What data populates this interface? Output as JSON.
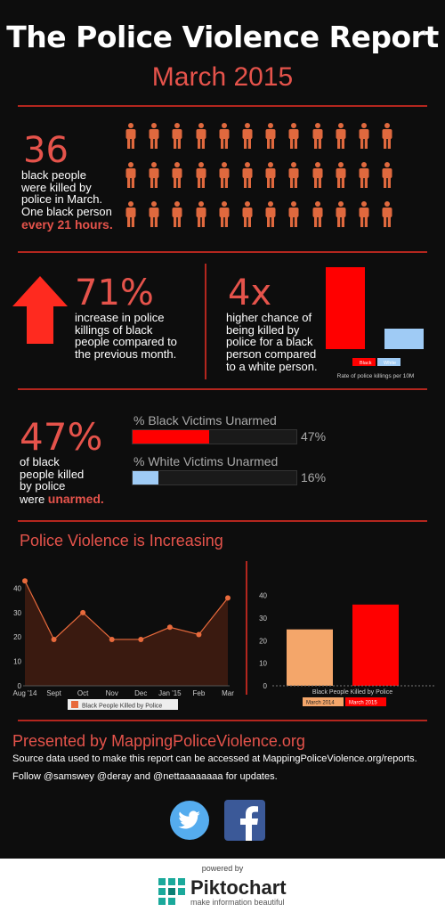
{
  "header": {
    "title": "The Police Violence Report",
    "subtitle": "March 2015"
  },
  "section1": {
    "number": "36",
    "text_lines": [
      "black people",
      "were killed by",
      "police in March.",
      "One black person"
    ],
    "highlight": "every 21 hours.",
    "icon_count": 36,
    "icon_color": "#e0693e"
  },
  "section2": {
    "left": {
      "number": "71%",
      "text_lines": [
        "increase in police",
        "killings of black",
        "people compared to",
        "the previous month."
      ]
    },
    "right": {
      "number": "4x",
      "text_lines": [
        "higher chance of",
        "being killed by",
        "police for a black",
        "person compared",
        "to a white person."
      ]
    }
  },
  "chart_data": [
    {
      "type": "bar",
      "categories": [
        "Black",
        "White"
      ],
      "values": [
        4,
        1
      ],
      "colors": [
        "#ff0000",
        "#9fcbf5"
      ],
      "xlabel": "Rate of police killings per 10M",
      "legend": [
        "Black",
        "White"
      ],
      "legend_placement": "bottom"
    },
    {
      "type": "bar",
      "orientation": "horizontal",
      "series": [
        {
          "name": "% Black Victims Unarmed",
          "value": 47,
          "label": "47%",
          "color": "#ff0000"
        },
        {
          "name": "% White Victims Unarmed",
          "value": 16,
          "label": "16%",
          "color": "#9fcbf5"
        }
      ],
      "xlim": [
        0,
        100
      ]
    },
    {
      "type": "area",
      "categories": [
        "Aug '14",
        "Sept",
        "Oct",
        "Nov",
        "Dec",
        "Jan '15",
        "Feb",
        "Mar"
      ],
      "series": [
        {
          "name": "Black People Killed by Police",
          "values": [
            43,
            19,
            30,
            19,
            19,
            24,
            21,
            36
          ],
          "color": "#e86a3c"
        }
      ],
      "yticks": [
        0,
        10,
        20,
        30,
        40
      ],
      "ylim": [
        0,
        46
      ],
      "legend_placement": "bottom"
    },
    {
      "type": "bar",
      "categories": [
        "March 2014",
        "March 2015"
      ],
      "values": [
        25,
        36
      ],
      "colors": [
        "#f4a66a",
        "#ff0000"
      ],
      "xlabel": "Black People Killed by Police",
      "legend": [
        "March 2014",
        "March 2015"
      ],
      "yticks": [
        0,
        10,
        20,
        30,
        40
      ],
      "ylim": [
        0,
        45
      ],
      "legend_placement": "bottom"
    }
  ],
  "section3": {
    "number": "47%",
    "text_lines": [
      "of black",
      "people killed",
      "by police"
    ],
    "text_prefix": "were ",
    "highlight": "unarmed."
  },
  "section4": {
    "heading": "Police Violence is Increasing"
  },
  "footer": {
    "presented": "Presented by MappingPoliceViolence.org",
    "source": "Source data used to make this report can be accessed at MappingPoliceViolence.org/reports.",
    "follow": "Follow @samswey @deray and @nettaaaaaaaa for updates.",
    "powered_by": "powered by",
    "brand": "Piktochart",
    "tagline": "make information beautiful"
  },
  "colors": {
    "accent_red": "#e5534b",
    "rule_red": "#b3261e",
    "twitter": "#55acee",
    "facebook": "#3b5998",
    "brand_teal": "#1aa99b"
  },
  "icons": [
    "person-icon",
    "arrow-up-icon",
    "twitter-icon",
    "facebook-icon",
    "piktochart-logo-icon"
  ]
}
